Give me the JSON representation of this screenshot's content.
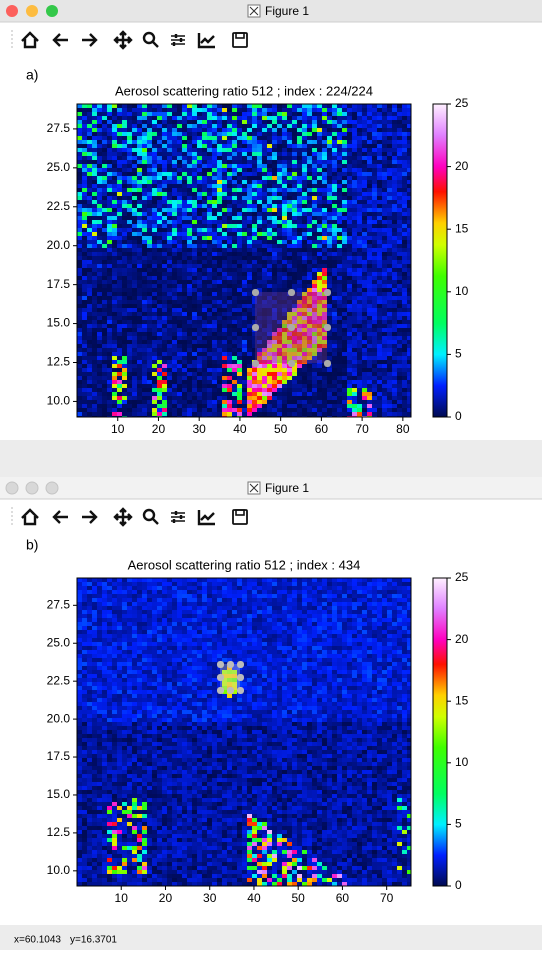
{
  "windows": [
    {
      "title": "Figure 1",
      "panel_label": "a)",
      "plot": {
        "title": "Aerosol scattering ratio 512 ; index : 224/224",
        "xlim": [
          0,
          82
        ],
        "ylim": [
          9,
          29.1
        ],
        "xticks": [
          10,
          20,
          30,
          40,
          50,
          60,
          70,
          80
        ],
        "yticks": [
          {
            "value": 10,
            "label": "10.0"
          },
          12.5,
          {
            "value": 15,
            "label": "15.0"
          },
          17.5,
          {
            "value": 20,
            "label": "20.0"
          },
          22.5,
          {
            "value": 25,
            "label": "25.0"
          },
          27.5
        ],
        "colorbar": {
          "lim": [
            0,
            25
          ],
          "ticks": [
            0,
            5,
            10,
            15,
            20,
            25
          ]
        }
      }
    },
    {
      "title": "Figure 1",
      "panel_label": "b)",
      "plot": {
        "title": "Aerosol scattering ratio 512 ; index : 434",
        "xlim": [
          0,
          75.5
        ],
        "ylim": [
          9,
          29.3
        ],
        "xticks": [
          10,
          20,
          30,
          40,
          50,
          60,
          70
        ],
        "yticks": [
          {
            "value": 10,
            "label": "10.0"
          },
          12.5,
          {
            "value": 15,
            "label": "15.0"
          },
          17.5,
          {
            "value": 20,
            "label": "20.0"
          },
          22.5,
          {
            "value": 25,
            "label": "25.0"
          },
          27.5
        ],
        "colorbar": {
          "lim": [
            0,
            25
          ],
          "ticks": [
            0,
            5,
            10,
            15,
            20,
            25
          ]
        }
      }
    }
  ],
  "status_bar": {
    "x_text": "x=60.1043",
    "y_text": "y=16.3701"
  }
}
